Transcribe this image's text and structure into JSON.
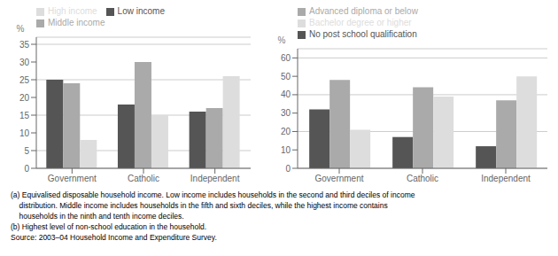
{
  "chart_data": [
    {
      "type": "bar",
      "ylabel": "%",
      "categories": [
        "Government",
        "Catholic",
        "Independent"
      ],
      "series": [
        {
          "name": "Low income",
          "color": "#555555",
          "values": [
            25,
            18,
            16
          ]
        },
        {
          "name": "Middle income",
          "color": "#aaaaaa",
          "values": [
            24,
            30,
            17
          ]
        },
        {
          "name": "High income",
          "color": "#dddddd",
          "values": [
            8,
            15,
            26
          ]
        }
      ],
      "ylim": [
        0,
        37
      ],
      "yticks": [
        0,
        5,
        10,
        15,
        20,
        25,
        30,
        35
      ],
      "grid": true,
      "legend": "upper left"
    },
    {
      "type": "bar",
      "ylabel": "%",
      "categories": [
        "Government",
        "Catholic",
        "Independent"
      ],
      "series": [
        {
          "name": "No post school qualification",
          "color": "#555555",
          "values": [
            32,
            17,
            12
          ]
        },
        {
          "name": "Advanced diploma or below",
          "color": "#aaaaaa",
          "values": [
            48,
            44,
            37
          ]
        },
        {
          "name": "Bachelor degree or higher",
          "color": "#dddddd",
          "values": [
            21,
            39,
            50
          ]
        }
      ],
      "ylim": [
        0,
        65
      ],
      "yticks": [
        0,
        10,
        20,
        30,
        40,
        50,
        60
      ],
      "grid": true,
      "legend": "upper left"
    }
  ],
  "annotations": [
    "(a) Equivalised disposable household income. Low income includes households in the second and third deciles of income",
    "    distribution. Middle income includes households in the fifth and sixth deciles, while the highest income contains",
    "    households in the ninth and tenth income deciles.",
    "(b) Highest level of non-school education in the household.",
    "Source: 2003–04 Household Income and Expenditure Survey."
  ]
}
